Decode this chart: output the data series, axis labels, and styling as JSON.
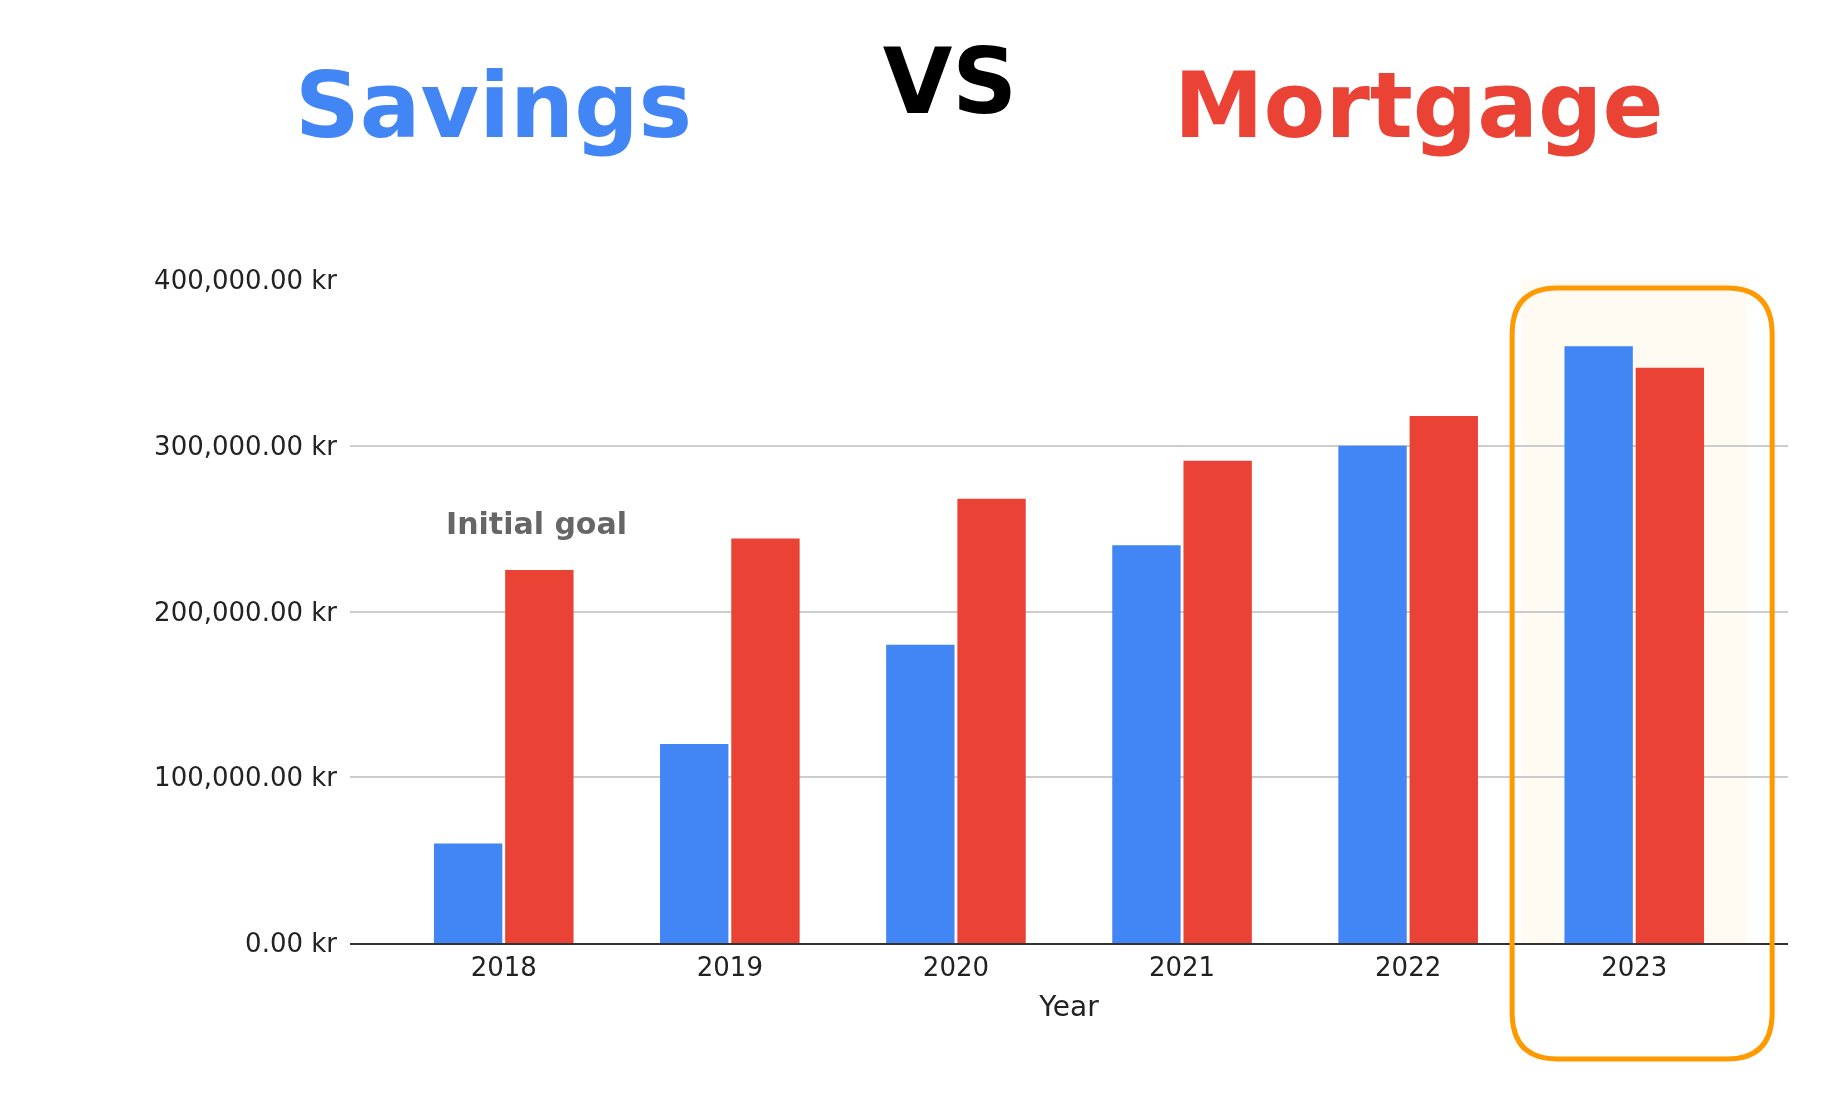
{
  "chart_data": {
    "type": "bar",
    "title": "VS",
    "xlabel": "Year",
    "categories": [
      "2018",
      "2019",
      "2020",
      "2021",
      "2022",
      "2023"
    ],
    "series": [
      {
        "name": "Savings",
        "color": "#4285f4",
        "values": [
          60000,
          120000,
          180000,
          240000,
          300000,
          360000
        ]
      },
      {
        "name": "Mortgage",
        "color": "#ea4335",
        "values": [
          225000,
          244000,
          268000,
          291000,
          318000,
          347000
        ]
      }
    ],
    "ylim": [
      0,
      400000
    ],
    "yticks": [
      {
        "value": 0,
        "label": "0.00 kr"
      },
      {
        "value": 100000,
        "label": "100,000.00 kr"
      },
      {
        "value": 200000,
        "label": "200,000.00 kr"
      },
      {
        "value": 300000,
        "label": "300,000.00 kr"
      },
      {
        "value": 400000,
        "label": "400,000.00 kr"
      }
    ],
    "grid": "y",
    "legend": false,
    "annotations": [
      "Initial goal"
    ],
    "bands": [
      {
        "axis": "x",
        "from": "2023",
        "to": "2023",
        "color": "#ff9900"
      }
    ]
  }
}
